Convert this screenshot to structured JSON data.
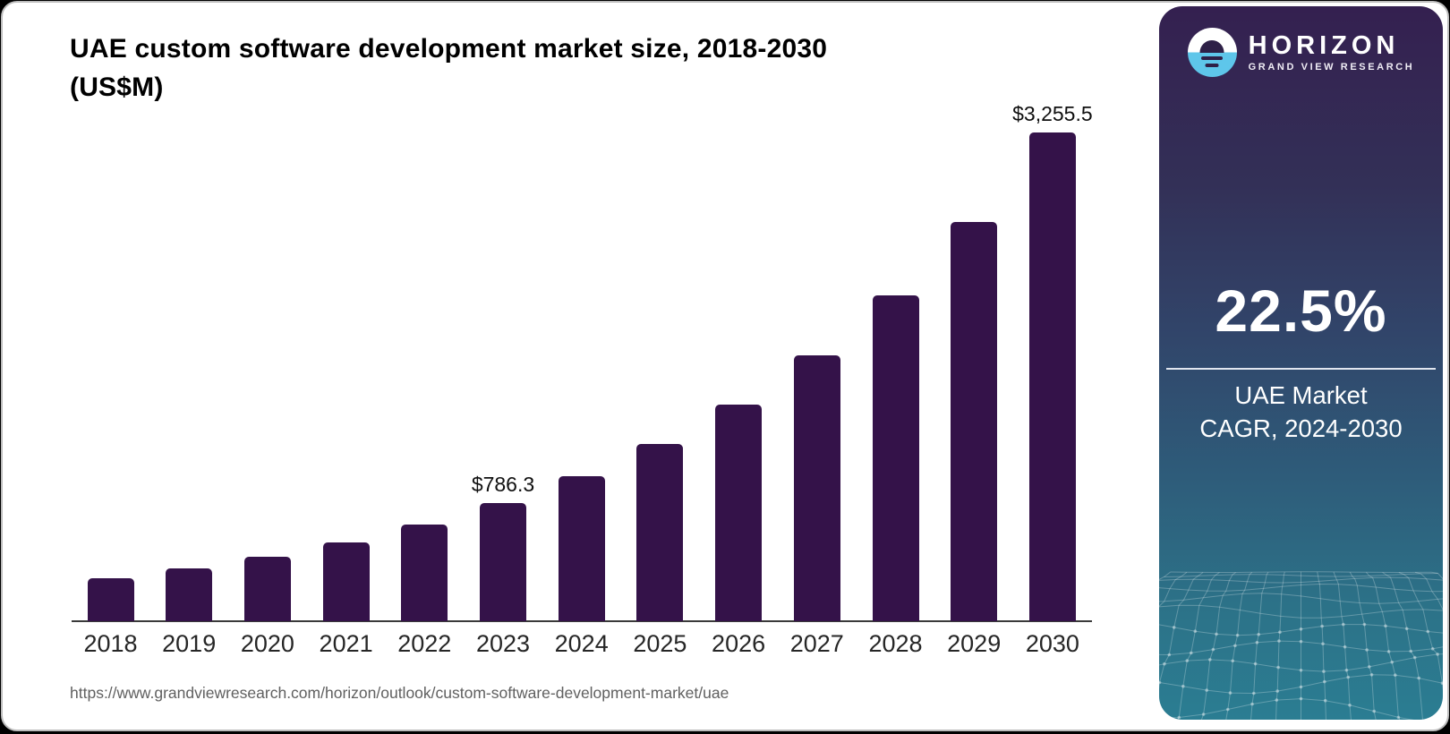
{
  "title_line1": "UAE custom software development market size, 2018-2030",
  "title_line2": "(US$M)",
  "source_url": "https://www.grandviewresearch.com/horizon/outlook/custom-software-development-market/uae",
  "chart_data": {
    "type": "bar",
    "title": "UAE custom software development market size, 2018-2030 (US$M)",
    "unit": "US$M",
    "categories": [
      "2018",
      "2019",
      "2020",
      "2021",
      "2022",
      "2023",
      "2024",
      "2025",
      "2026",
      "2027",
      "2028",
      "2029",
      "2030"
    ],
    "values": [
      285.0,
      349.2,
      427.7,
      524.0,
      641.9,
      786.3,
      963.2,
      1179.9,
      1445.4,
      1770.6,
      2169.0,
      2657.0,
      3255.5
    ],
    "data_labels": [
      "",
      "",
      "",
      "",
      "",
      "$786.3",
      "",
      "",
      "",
      "",
      "",
      "",
      "$3,255.5"
    ],
    "bar_color": "#341249",
    "ylim": [
      0,
      3255.5
    ],
    "grid": false,
    "legend": false,
    "xlabel": "",
    "ylabel": ""
  },
  "sidebar": {
    "brand": "HORIZON",
    "brand_tagline": "GRAND VIEW RESEARCH",
    "stat_value": "22.5%",
    "stat_caption_line1": "UAE Market",
    "stat_caption_line2": "CAGR, 2024-2030"
  },
  "colors": {
    "bar": "#341249",
    "accent_blue": "#5ec6ea",
    "panel_top": "#342050",
    "panel_bottom": "#2b7d92",
    "axis": "#3a3a3a",
    "source_text": "#606060"
  }
}
